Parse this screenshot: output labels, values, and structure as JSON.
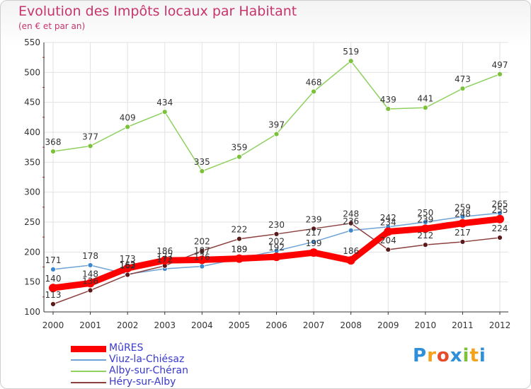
{
  "header": {
    "title": "Evolution des Impôts locaux par Habitant",
    "subtitle": "(en € et par an)"
  },
  "logo": {
    "text": "Proxiti",
    "letters": [
      "P",
      "r",
      "o",
      "x",
      "i",
      "t",
      "i"
    ],
    "colors": [
      "#2f8fd8",
      "#f3a21b",
      "#e84a2c",
      "#2f8fd8",
      "#7cc13a",
      "#f3a21b",
      "#2f8fd8"
    ]
  },
  "chart_data": {
    "type": "line",
    "title": "Evolution des Impôts locaux par Habitant",
    "subtitle": "(en € et par an)",
    "xlabel": "",
    "ylabel": "",
    "categories": [
      "2000",
      "2001",
      "2002",
      "2003",
      "2004",
      "2005",
      "2006",
      "2007",
      "2008",
      "2009",
      "2010",
      "2011",
      "2012"
    ],
    "ylim": [
      100,
      550
    ],
    "yticks": [
      100,
      150,
      200,
      250,
      300,
      350,
      400,
      450,
      500,
      550
    ],
    "grid": true,
    "legend_position": "bottom-left",
    "series": [
      {
        "name": "MûRES",
        "color": "#ff0000",
        "marker": "#ff0000",
        "values": [
          140,
          148,
          173,
          186,
          187,
          189,
          192,
          199,
          186,
          234,
          239,
          248,
          255
        ],
        "labels": [
          "140",
          "148",
          "173",
          "186",
          "187",
          "189",
          "192",
          "199",
          "186",
          "234",
          "239",
          "248",
          "255"
        ]
      },
      {
        "name": "Viuz-la-Chiésaz",
        "color": "#6fa3d6",
        "marker": "#3d87cf",
        "values": [
          171,
          178,
          163,
          172,
          176,
          189,
          202,
          217,
          236,
          242,
          250,
          259,
          265
        ],
        "labels": [
          "171",
          "178",
          "163",
          "172",
          "176",
          "189",
          "202",
          "217",
          "236",
          "242",
          "250",
          "259",
          "265"
        ]
      },
      {
        "name": "Alby-sur-Chéran",
        "color": "#8fd160",
        "marker": "#7cc13a",
        "values": [
          368,
          377,
          409,
          434,
          335,
          359,
          397,
          468,
          519,
          439,
          441,
          473,
          497
        ],
        "labels": [
          "368",
          "377",
          "409",
          "434",
          "335",
          "359",
          "397",
          "468",
          "519",
          "439",
          "441",
          "473",
          "497"
        ]
      },
      {
        "name": "Héry-sur-Alby",
        "color": "#8c4040",
        "marker": "#5a1a1a",
        "values": [
          113,
          136,
          162,
          177,
          202,
          222,
          230,
          239,
          248,
          204,
          212,
          217,
          224
        ],
        "labels": [
          "113",
          "136",
          "162",
          "177",
          "202",
          "222",
          "230",
          "239",
          "248",
          "204",
          "212",
          "217",
          "224"
        ]
      }
    ]
  },
  "legend": {
    "items": [
      {
        "label": "MûRES",
        "color": "#ff0000"
      },
      {
        "label": "Viuz-la-Chiésaz",
        "color": "#6fa3d6"
      },
      {
        "label": "Alby-sur-Chéran",
        "color": "#8fd160"
      },
      {
        "label": "Héry-sur-Alby",
        "color": "#8c4040"
      }
    ]
  }
}
